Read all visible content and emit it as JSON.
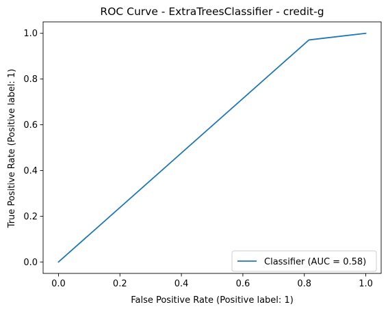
{
  "chart_data": {
    "type": "line",
    "title": "ROC Curve - ExtraTreesClassifier - credit-g",
    "xlabel": "False Positive Rate (Positive label: 1)",
    "ylabel": "True Positive Rate (Positive label: 1)",
    "xlim": [
      -0.05,
      1.05
    ],
    "ylim": [
      -0.05,
      1.05
    ],
    "xticks": [
      0.0,
      0.2,
      0.4,
      0.6,
      0.8,
      1.0
    ],
    "yticks": [
      0.0,
      0.2,
      0.4,
      0.6,
      0.8,
      1.0
    ],
    "xtick_labels": [
      "0.0",
      "0.2",
      "0.4",
      "0.6",
      "0.8",
      "1.0"
    ],
    "ytick_labels": [
      "0.0",
      "0.2",
      "0.4",
      "0.6",
      "0.8",
      "1.0"
    ],
    "grid": false,
    "legend_position": "lower-right",
    "series": [
      {
        "name": "Classifier (AUC = 0.58)",
        "color": "#1f77b4",
        "x": [
          0.0,
          0.815,
          1.0
        ],
        "y": [
          0.0,
          0.971,
          1.0
        ]
      }
    ]
  }
}
